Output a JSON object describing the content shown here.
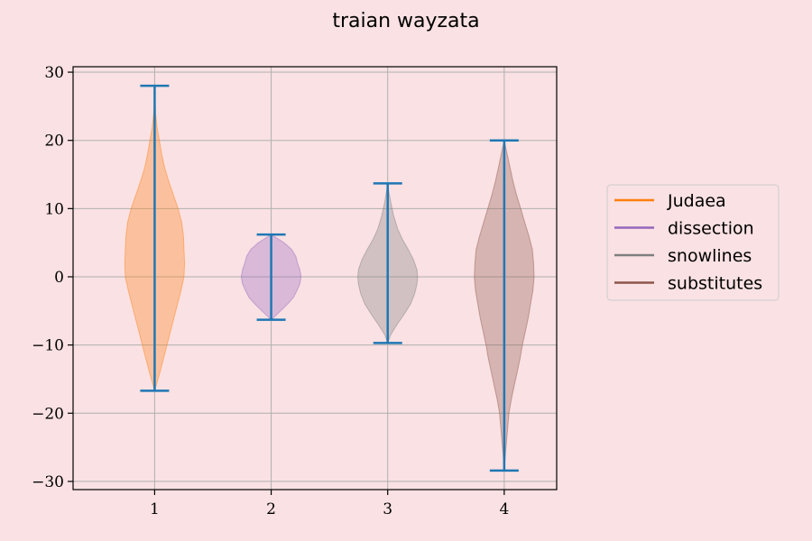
{
  "chart_data": {
    "type": "violin",
    "title": "traian wayzata",
    "xlabel": "",
    "ylabel": "",
    "xlim": [
      0.3,
      4.45
    ],
    "ylim": [
      -31.2,
      30.8
    ],
    "x_ticks": [
      1,
      2,
      3,
      4
    ],
    "y_ticks": [
      -30,
      -20,
      -10,
      0,
      10,
      20,
      30
    ],
    "grid": true,
    "legend_position": "right",
    "range_line_color": "#1f77b4",
    "series": [
      {
        "name": "Judaea",
        "position": 1,
        "color": "#ff7f0e",
        "min": -16.7,
        "max": 28.0,
        "profile": [
          [
            -16.7,
            0.0
          ],
          [
            -14.0,
            0.09
          ],
          [
            -11.0,
            0.18
          ],
          [
            -8.0,
            0.27
          ],
          [
            -5.0,
            0.36
          ],
          [
            -2.0,
            0.45
          ],
          [
            0.0,
            0.5
          ],
          [
            2.0,
            0.51
          ],
          [
            4.0,
            0.5
          ],
          [
            6.0,
            0.49
          ],
          [
            8.0,
            0.46
          ],
          [
            10.0,
            0.4
          ],
          [
            12.0,
            0.32
          ],
          [
            14.0,
            0.24
          ],
          [
            16.0,
            0.17
          ],
          [
            18.0,
            0.12
          ],
          [
            20.0,
            0.08
          ],
          [
            22.0,
            0.04
          ],
          [
            24.0,
            0.015
          ],
          [
            26.0,
            0.005
          ],
          [
            28.0,
            0.0
          ]
        ]
      },
      {
        "name": "dissection",
        "position": 2,
        "color": "#9467bd",
        "min": -6.3,
        "max": 6.2,
        "profile": [
          [
            -6.3,
            0.0
          ],
          [
            -5.0,
            0.16
          ],
          [
            -4.0,
            0.28
          ],
          [
            -3.0,
            0.38
          ],
          [
            -2.0,
            0.44
          ],
          [
            -1.0,
            0.49
          ],
          [
            0.0,
            0.51
          ],
          [
            1.0,
            0.49
          ],
          [
            2.0,
            0.45
          ],
          [
            3.0,
            0.42
          ],
          [
            4.0,
            0.35
          ],
          [
            5.0,
            0.22
          ],
          [
            6.2,
            0.0
          ]
        ]
      },
      {
        "name": "snowlines",
        "position": 3,
        "color": "#7f7f7f",
        "min": -9.7,
        "max": 13.7,
        "profile": [
          [
            -9.7,
            0.0
          ],
          [
            -8.5,
            0.05
          ],
          [
            -7.0,
            0.16
          ],
          [
            -5.5,
            0.28
          ],
          [
            -4.0,
            0.39
          ],
          [
            -2.5,
            0.46
          ],
          [
            -1.0,
            0.5
          ],
          [
            0.0,
            0.51
          ],
          [
            1.0,
            0.5
          ],
          [
            2.5,
            0.44
          ],
          [
            4.0,
            0.35
          ],
          [
            5.5,
            0.25
          ],
          [
            7.0,
            0.17
          ],
          [
            9.0,
            0.1
          ],
          [
            11.0,
            0.05
          ],
          [
            12.5,
            0.02
          ],
          [
            13.7,
            0.0
          ]
        ]
      },
      {
        "name": "substitutes",
        "position": 4,
        "color": "#8c564b",
        "min": -28.4,
        "max": 20.0,
        "profile": [
          [
            -28.4,
            0.0
          ],
          [
            -26.0,
            0.02
          ],
          [
            -24.0,
            0.04
          ],
          [
            -22.0,
            0.06
          ],
          [
            -20.0,
            0.08
          ],
          [
            -18.0,
            0.12
          ],
          [
            -16.0,
            0.17
          ],
          [
            -14.0,
            0.22
          ],
          [
            -12.0,
            0.27
          ],
          [
            -10.0,
            0.31
          ],
          [
            -8.0,
            0.36
          ],
          [
            -6.0,
            0.41
          ],
          [
            -4.0,
            0.45
          ],
          [
            -2.0,
            0.49
          ],
          [
            0.0,
            0.51
          ],
          [
            2.0,
            0.5
          ],
          [
            4.0,
            0.48
          ],
          [
            6.0,
            0.42
          ],
          [
            8.0,
            0.35
          ],
          [
            10.0,
            0.28
          ],
          [
            12.0,
            0.21
          ],
          [
            14.0,
            0.15
          ],
          [
            16.0,
            0.1
          ],
          [
            18.0,
            0.05
          ],
          [
            20.0,
            0.0
          ]
        ]
      }
    ]
  }
}
